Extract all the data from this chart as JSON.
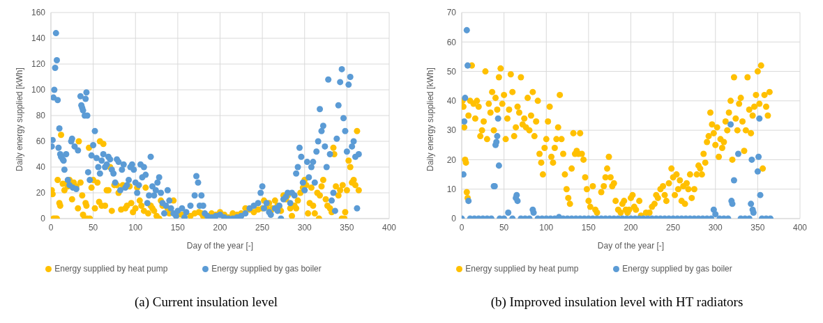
{
  "chart_data": [
    {
      "type": "scatter",
      "title": "(a) Current insulation level",
      "xlabel": "Day of the year [-]",
      "ylabel": "Daily energy supplied [kWh]",
      "xlim": [
        0,
        400
      ],
      "xticks": [
        0,
        50,
        100,
        150,
        200,
        250,
        300,
        350,
        400
      ],
      "ylim": [
        0,
        160
      ],
      "yticks": [
        0,
        20,
        40,
        60,
        80,
        100,
        120,
        140,
        160
      ],
      "grid": true,
      "legend": "bottom",
      "marker": "circle",
      "series": [
        {
          "name": "Energy supplied by heat pump",
          "color": "#ffc000",
          "x": [
            1,
            2,
            3,
            5,
            7,
            8,
            10,
            11,
            12,
            14,
            16,
            18,
            20,
            22,
            25,
            27,
            30,
            32,
            33,
            35,
            37,
            38,
            40,
            41,
            42,
            43,
            45,
            46,
            48,
            50,
            52,
            55,
            57,
            58,
            60,
            62,
            64,
            66,
            68,
            70,
            72,
            75,
            78,
            80,
            83,
            85,
            88,
            90,
            93,
            95,
            97,
            100,
            102,
            105,
            107,
            110,
            112,
            115,
            118,
            120,
            122,
            125,
            128,
            130,
            132,
            138,
            140,
            145,
            150,
            155,
            165,
            170,
            175,
            178,
            180,
            190,
            195,
            200,
            205,
            210,
            215,
            220,
            225,
            230,
            235,
            240,
            245,
            250,
            252,
            255,
            258,
            260,
            262,
            265,
            268,
            270,
            272,
            275,
            278,
            280,
            283,
            285,
            288,
            290,
            292,
            295,
            298,
            300,
            302,
            304,
            306,
            308,
            310,
            312,
            315,
            317,
            318,
            320,
            322,
            325,
            327,
            330,
            332,
            334,
            335,
            337,
            340,
            342,
            344,
            345,
            347,
            348,
            350,
            352,
            354,
            356,
            358,
            360,
            362,
            364
          ],
          "values": [
            22,
            19,
            0,
            0,
            0,
            30,
            12,
            10,
            65,
            27,
            22,
            27,
            25,
            30,
            15,
            28,
            25,
            8,
            60,
            28,
            18,
            3,
            0,
            12,
            10,
            0,
            55,
            0,
            24,
            30,
            8,
            28,
            13,
            60,
            10,
            58,
            10,
            22,
            22,
            40,
            6,
            26,
            26,
            20,
            7,
            26,
            8,
            10,
            25,
            12,
            5,
            8,
            24,
            14,
            10,
            6,
            24,
            4,
            10,
            8,
            6,
            2,
            0,
            14,
            10,
            8,
            4,
            14,
            3,
            3,
            2,
            4,
            5,
            4,
            2,
            4,
            3,
            5,
            3,
            1,
            4,
            3,
            4,
            8,
            7,
            5,
            7,
            8,
            14,
            9,
            12,
            6,
            8,
            14,
            10,
            9,
            6,
            18,
            15,
            18,
            8,
            2,
            10,
            8,
            14,
            20,
            24,
            30,
            26,
            4,
            12,
            24,
            10,
            4,
            20,
            0,
            18,
            25,
            30,
            15,
            10,
            8,
            5,
            55,
            50,
            25,
            18,
            22,
            0,
            26,
            0,
            5,
            22,
            45,
            40,
            28,
            30,
            26,
            68,
            22
          ]
        },
        {
          "name": "Energy supplied by gas boiler",
          "color": "#5b9bd5",
          "x": [
            1,
            2,
            3,
            4,
            5,
            6,
            7,
            8,
            9,
            10,
            11,
            12,
            14,
            15,
            16,
            18,
            20,
            22,
            24,
            25,
            26,
            28,
            30,
            32,
            35,
            36,
            37,
            38,
            40,
            41,
            42,
            43,
            44,
            46,
            48,
            50,
            52,
            54,
            56,
            58,
            60,
            62,
            64,
            66,
            68,
            70,
            72,
            74,
            76,
            78,
            80,
            82,
            84,
            86,
            88,
            90,
            92,
            94,
            96,
            98,
            100,
            102,
            104,
            106,
            108,
            110,
            112,
            114,
            116,
            118,
            120,
            122,
            124,
            126,
            128,
            130,
            132,
            134,
            136,
            138,
            140,
            142,
            145,
            148,
            150,
            155,
            158,
            160,
            165,
            170,
            172,
            174,
            176,
            178,
            180,
            182,
            185,
            190,
            195,
            200,
            205,
            210,
            215,
            220,
            225,
            230,
            235,
            240,
            245,
            248,
            250,
            252,
            255,
            258,
            260,
            265,
            268,
            270,
            272,
            275,
            278,
            280,
            283,
            285,
            288,
            290,
            292,
            294,
            296,
            298,
            300,
            303,
            305,
            308,
            310,
            312,
            314,
            316,
            318,
            320,
            322,
            324,
            326,
            328,
            330,
            332,
            334,
            336,
            338,
            340,
            342,
            344,
            346,
            348,
            350,
            352,
            354,
            356,
            358,
            360,
            362,
            364
          ],
          "values": [
            56,
            61,
            94,
            100,
            117,
            144,
            123,
            92,
            55,
            70,
            50,
            48,
            46,
            45,
            38,
            50,
            30,
            26,
            60,
            62,
            24,
            56,
            23,
            53,
            95,
            88,
            86,
            84,
            80,
            93,
            98,
            80,
            36,
            30,
            49,
            57,
            68,
            47,
            40,
            35,
            45,
            50,
            40,
            42,
            48,
            46,
            38,
            35,
            28,
            46,
            44,
            22,
            38,
            42,
            24,
            26,
            30,
            40,
            42,
            38,
            28,
            20,
            26,
            42,
            32,
            40,
            34,
            12,
            18,
            48,
            25,
            18,
            22,
            28,
            32,
            20,
            12,
            4,
            10,
            22,
            14,
            8,
            4,
            2,
            6,
            8,
            1,
            5,
            10,
            18,
            33,
            28,
            10,
            18,
            10,
            4,
            2,
            1,
            2,
            3,
            1,
            0,
            0,
            1,
            2,
            4,
            8,
            10,
            12,
            20,
            25,
            8,
            12,
            5,
            3,
            8,
            6,
            10,
            0,
            15,
            17,
            20,
            12,
            20,
            18,
            35,
            40,
            55,
            48,
            28,
            22,
            44,
            32,
            40,
            44,
            28,
            52,
            60,
            85,
            68,
            72,
            56,
            40,
            108,
            50,
            14,
            20,
            6,
            62,
            88,
            106,
            116,
            78,
            68,
            52,
            104,
            110,
            56,
            60,
            48,
            8,
            50
          ]
        }
      ]
    },
    {
      "type": "scatter",
      "title": "(b) Improved insulation level with HT radiators",
      "xlabel": "Day of the year [-]",
      "ylabel": "Daily energy supplied [kWh]",
      "xlim": [
        0,
        400
      ],
      "xticks": [
        0,
        50,
        100,
        150,
        200,
        250,
        300,
        350,
        400
      ],
      "ylim": [
        0,
        70
      ],
      "yticks": [
        0,
        10,
        20,
        30,
        40,
        50,
        60,
        70
      ],
      "grid": true,
      "legend": "bottom",
      "marker": "circle",
      "series": [
        {
          "name": "Energy supplied by heat pump",
          "color": "#ffc000",
          "x": [
            1,
            2,
            3,
            4,
            5,
            6,
            7,
            8,
            10,
            12,
            14,
            16,
            18,
            20,
            22,
            24,
            26,
            28,
            30,
            32,
            34,
            36,
            38,
            40,
            42,
            44,
            46,
            48,
            50,
            52,
            54,
            56,
            58,
            60,
            62,
            64,
            66,
            68,
            70,
            72,
            74,
            76,
            78,
            80,
            82,
            84,
            86,
            88,
            90,
            92,
            94,
            96,
            98,
            100,
            102,
            104,
            106,
            108,
            110,
            112,
            114,
            116,
            118,
            120,
            122,
            124,
            126,
            128,
            130,
            132,
            134,
            136,
            138,
            140,
            142,
            144,
            146,
            148,
            150,
            152,
            155,
            158,
            160,
            165,
            168,
            170,
            172,
            174,
            176,
            178,
            180,
            182,
            185,
            188,
            190,
            192,
            194,
            196,
            198,
            200,
            202,
            204,
            206,
            210,
            212,
            218,
            222,
            225,
            228,
            230,
            232,
            235,
            238,
            240,
            242,
            245,
            248,
            250,
            252,
            254,
            256,
            258,
            260,
            262,
            264,
            266,
            268,
            270,
            272,
            275,
            278,
            280,
            282,
            284,
            286,
            288,
            290,
            292,
            294,
            296,
            298,
            300,
            302,
            304,
            306,
            308,
            310,
            312,
            314,
            316,
            318,
            320,
            322,
            324,
            326,
            328,
            330,
            332,
            334,
            336,
            338,
            340,
            342,
            344,
            346,
            348,
            350,
            352,
            354,
            356,
            358,
            360,
            362,
            364
          ],
          "values": [
            40,
            38,
            31,
            20,
            19,
            9,
            7,
            35,
            40,
            52,
            39,
            34,
            40,
            38,
            28,
            30,
            33,
            50,
            27,
            39,
            36,
            43,
            30,
            41,
            37,
            48,
            51,
            39,
            42,
            27,
            34,
            37,
            49,
            43,
            28,
            31,
            38,
            36,
            48,
            32,
            34,
            31,
            41,
            30,
            35,
            43,
            28,
            33,
            40,
            22,
            19,
            15,
            24,
            27,
            33,
            38,
            21,
            19,
            24,
            27,
            31,
            42,
            27,
            22,
            15,
            10,
            7,
            5,
            17,
            29,
            22,
            23,
            22,
            29,
            22,
            20,
            14,
            10,
            6,
            4,
            11,
            3,
            2,
            9,
            11,
            14,
            17,
            21,
            14,
            11,
            12,
            6,
            3,
            2,
            5,
            6,
            3,
            2,
            3,
            7,
            8,
            4,
            3,
            6,
            1,
            2,
            2,
            4,
            5,
            8,
            7,
            10,
            11,
            8,
            6,
            12,
            17,
            14,
            8,
            15,
            10,
            13,
            6,
            11,
            5,
            12,
            10,
            15,
            7,
            10,
            15,
            18,
            17,
            15,
            22,
            19,
            26,
            28,
            36,
            32,
            29,
            25,
            31,
            21,
            27,
            24,
            26,
            33,
            30,
            36,
            40,
            20,
            48,
            34,
            30,
            39,
            41,
            33,
            23,
            30,
            48,
            37,
            29,
            35,
            38,
            42,
            50,
            39,
            52,
            17,
            42,
            38,
            35,
            43
          ]
        },
        {
          "name": "Energy supplied by gas boiler",
          "color": "#5b9bd5",
          "x": [
            0,
            2,
            3,
            4,
            6,
            7,
            8,
            10,
            15,
            20,
            25,
            30,
            35,
            38,
            39,
            40,
            41,
            42,
            43,
            44,
            45,
            50,
            55,
            60,
            64,
            65,
            66,
            70,
            75,
            80,
            84,
            85,
            90,
            95,
            100,
            105,
            110,
            115,
            120,
            125,
            130,
            135,
            140,
            145,
            150,
            155,
            160,
            165,
            170,
            175,
            180,
            185,
            190,
            195,
            200,
            205,
            210,
            215,
            220,
            225,
            230,
            235,
            240,
            245,
            250,
            255,
            260,
            265,
            270,
            275,
            280,
            285,
            290,
            295,
            298,
            300,
            305,
            310,
            315,
            318,
            319,
            320,
            322,
            327,
            330,
            335,
            340,
            342,
            343,
            344,
            345,
            350,
            351,
            352,
            353,
            355,
            360,
            365
          ],
          "values": [
            0,
            15,
            33,
            41,
            64,
            52,
            6,
            0,
            0,
            0,
            0,
            0,
            0,
            11,
            11,
            25,
            26,
            28,
            34,
            18,
            0,
            0,
            2,
            0,
            7,
            8,
            6,
            0,
            0,
            0,
            3,
            2,
            0,
            0,
            0,
            0,
            0,
            0.5,
            0,
            0,
            0,
            0,
            0,
            0,
            0,
            0,
            0,
            0,
            0,
            0,
            0,
            0,
            0,
            0,
            0,
            0,
            0,
            0,
            0,
            0,
            0,
            0,
            0,
            0,
            0,
            0,
            0,
            0,
            0,
            0,
            0,
            0,
            0,
            0,
            3,
            1.5,
            0,
            0,
            0,
            32,
            6,
            5,
            13,
            22,
            0,
            0,
            0,
            5,
            20,
            3,
            2,
            16,
            21,
            34,
            8,
            0,
            0,
            0
          ]
        }
      ]
    }
  ]
}
